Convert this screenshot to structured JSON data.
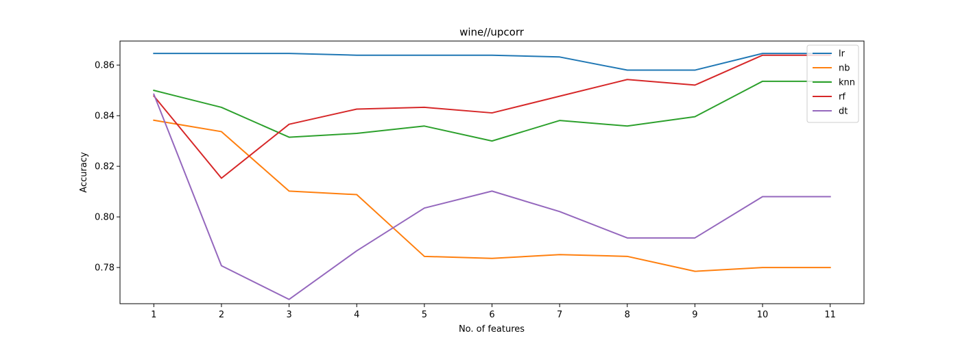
{
  "chart_data": {
    "type": "line",
    "title": "wine//upcorr",
    "xlabel": "No. of features",
    "ylabel": "Accuracy",
    "x": [
      1,
      2,
      3,
      4,
      5,
      6,
      7,
      8,
      9,
      10,
      11
    ],
    "xlim": [
      0.5,
      11.5
    ],
    "ylim": [
      0.7657,
      0.8695
    ],
    "yticks": [
      0.78,
      0.8,
      0.82,
      0.84,
      0.86
    ],
    "ytick_labels": [
      "0.78",
      "0.80",
      "0.82",
      "0.84",
      "0.86"
    ],
    "xtick_labels": [
      "1",
      "2",
      "3",
      "4",
      "5",
      "6",
      "7",
      "8",
      "9",
      "10",
      "11"
    ],
    "grid": false,
    "legend_position": "top-right",
    "series": [
      {
        "name": "lr",
        "color": "#1f77b4",
        "values": [
          0.8646,
          0.8646,
          0.8646,
          0.8639,
          0.8639,
          0.8639,
          0.8632,
          0.858,
          0.858,
          0.8646,
          0.8646
        ]
      },
      {
        "name": "nb",
        "color": "#ff7f0e",
        "values": [
          0.8382,
          0.8337,
          0.8102,
          0.8088,
          0.7844,
          0.7836,
          0.7851,
          0.7844,
          0.7785,
          0.78,
          0.78
        ]
      },
      {
        "name": "knn",
        "color": "#2ca02c",
        "values": [
          0.85,
          0.8433,
          0.8315,
          0.833,
          0.8359,
          0.83,
          0.8381,
          0.8359,
          0.8396,
          0.8536,
          0.8536
        ]
      },
      {
        "name": "rf",
        "color": "#d62728",
        "values": [
          0.8478,
          0.8153,
          0.8366,
          0.8426,
          0.8433,
          0.8411,
          0.8477,
          0.8543,
          0.8521,
          0.8639,
          0.8639
        ]
      },
      {
        "name": "dt",
        "color": "#9467bd",
        "values": [
          0.8485,
          0.7807,
          0.7674,
          0.7866,
          0.8035,
          0.8102,
          0.8021,
          0.7917,
          0.7917,
          0.808,
          0.808
        ]
      }
    ]
  }
}
